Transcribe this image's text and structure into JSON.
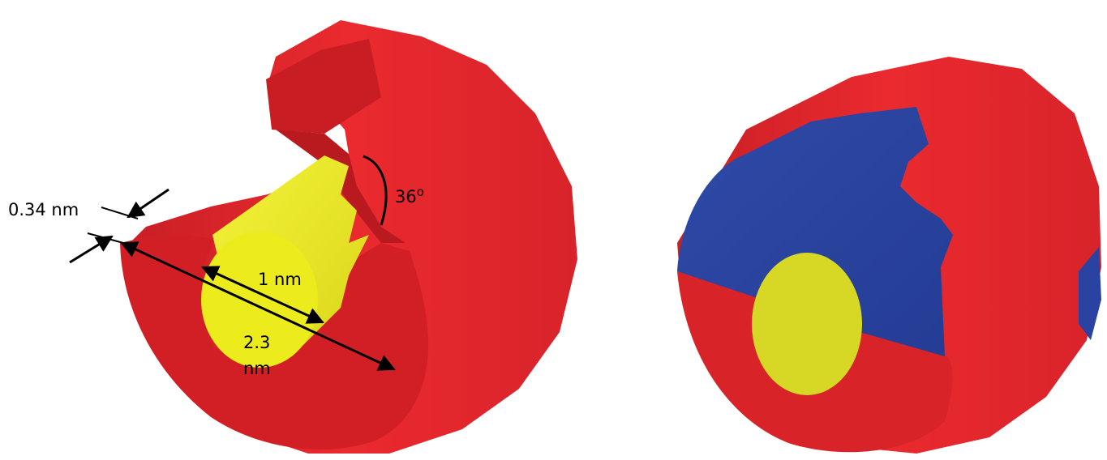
{
  "labels": {
    "thickness": "0.34 nm",
    "angle_value": "36",
    "angle_unit": "o",
    "inner_diameter": "1 nm",
    "outer_diameter_line1": "2.3",
    "outer_diameter_line2": "nm"
  },
  "colors": {
    "red": "#e0232a",
    "red_dark": "#c41d22",
    "yellow": "#e8e61e",
    "blue": "#2a43a0",
    "arrow": "#000000"
  }
}
